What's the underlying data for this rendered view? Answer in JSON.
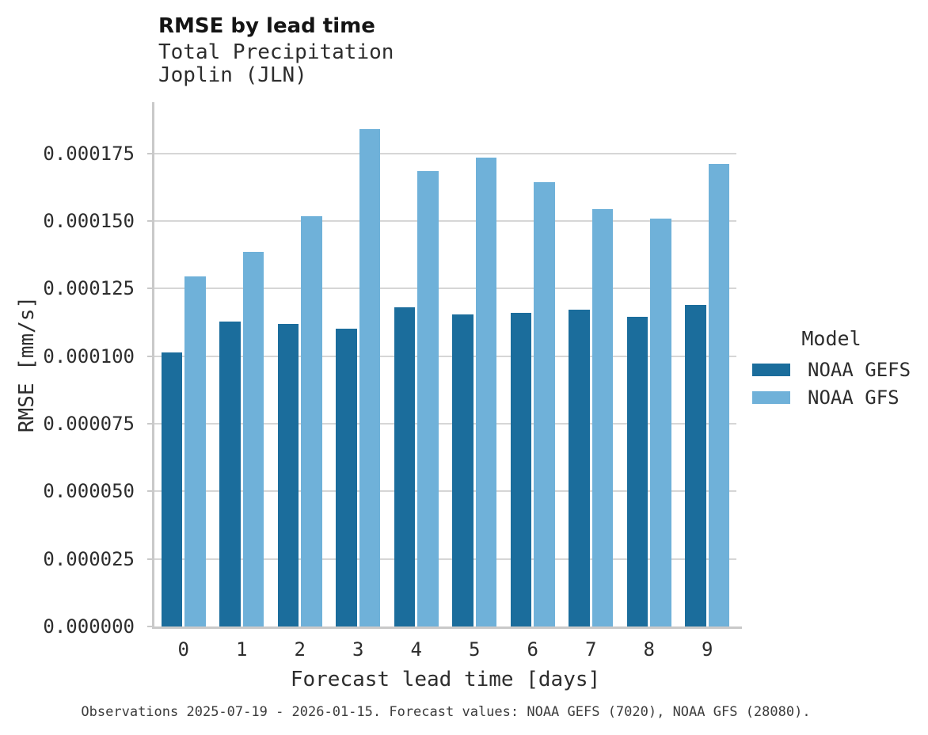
{
  "header": {
    "title": "RMSE by lead time",
    "subtitle1": "Total Precipitation",
    "subtitle2": "Joplin (JLN)"
  },
  "chart_data": {
    "type": "bar",
    "title": "RMSE by lead time",
    "subtitle": [
      "Total Precipitation",
      "Joplin (JLN)"
    ],
    "categories": [
      "0",
      "1",
      "2",
      "3",
      "4",
      "5",
      "6",
      "7",
      "8",
      "9"
    ],
    "series": [
      {
        "name": "NOAA GEFS",
        "color": "#1b6d9c",
        "values": [
          0.0001013,
          0.0001129,
          0.0001121,
          0.0001101,
          0.0001182,
          0.0001156,
          0.0001161,
          0.0001171,
          0.0001147,
          0.000119
        ]
      },
      {
        "name": "NOAA GFS",
        "color": "#6fb1d9",
        "values": [
          0.0001294,
          0.0001385,
          0.0001519,
          0.0001841,
          0.0001686,
          0.0001734,
          0.0001643,
          0.0001545,
          0.000151,
          0.0001711
        ]
      }
    ],
    "xlabel": "Forecast lead time [days]",
    "ylabel": "RMSE [mm/s]",
    "ylim": [
      0,
      0.000194
    ],
    "grid": "horizontal",
    "legend_title": "Model",
    "legend_position": "right",
    "y_ticks": [
      {
        "value": 0.0,
        "label": "0.000000"
      },
      {
        "value": 2.5e-05,
        "label": "0.000025"
      },
      {
        "value": 5e-05,
        "label": "0.000050"
      },
      {
        "value": 7.5e-05,
        "label": "0.000075"
      },
      {
        "value": 0.0001,
        "label": "0.000100"
      },
      {
        "value": 0.000125,
        "label": "0.000125"
      },
      {
        "value": 0.00015,
        "label": "0.000150"
      },
      {
        "value": 0.000175,
        "label": "0.000175"
      }
    ]
  },
  "caption": "Observations 2025-07-19 - 2026-01-15. Forecast values: NOAA GEFS (7020), NOAA GFS (28080)."
}
